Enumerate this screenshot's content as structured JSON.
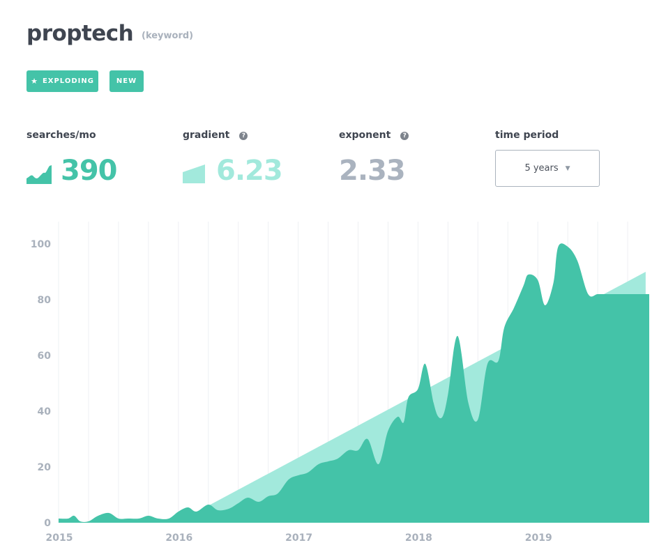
{
  "keyword": {
    "title": "proptech",
    "kind": "(keyword)"
  },
  "badges": {
    "exploding": {
      "icon": "star-icon",
      "label": "EXPLODING"
    },
    "new": {
      "label": "NEW"
    }
  },
  "metrics": {
    "searches": {
      "label": "searches/mo",
      "value": "390",
      "icon": "area-growth-icon",
      "color": "#44c3a8"
    },
    "gradient": {
      "label": "gradient",
      "value": "6.23",
      "icon": "trapezoid-icon",
      "color": "#a2e9dc"
    },
    "exponent": {
      "label": "exponent",
      "value": "2.33",
      "color": "#aab3bf"
    }
  },
  "time_period": {
    "label": "time period",
    "value": "5 years",
    "icon": "caret-down-icon"
  },
  "colors": {
    "accent": "#44c3a8",
    "trend": "#a2e9dc",
    "axis_text": "#a9b1bc",
    "grid": "#eef0f3"
  },
  "chart_data": {
    "type": "area",
    "title": "",
    "xlabel": "",
    "ylabel": "",
    "ylim": [
      0,
      100
    ],
    "yticks": [
      0,
      20,
      40,
      60,
      80,
      100
    ],
    "xlim": [
      2015.0,
      2019.93
    ],
    "xticks": [
      {
        "label": "2015",
        "x": 2015.0
      },
      {
        "label": "2016",
        "x": 2016.0
      },
      {
        "label": "2017",
        "x": 2017.0
      },
      {
        "label": "2018",
        "x": 2018.0
      },
      {
        "label": "2019",
        "x": 2019.0
      }
    ],
    "grid": true,
    "series": [
      {
        "name": "searches",
        "color": "#44c3a8",
        "x": [
          2015.0,
          2015.08,
          2015.13,
          2015.18,
          2015.25,
          2015.33,
          2015.42,
          2015.5,
          2015.58,
          2015.67,
          2015.75,
          2015.83,
          2015.92,
          2016.0,
          2016.08,
          2016.15,
          2016.25,
          2016.33,
          2016.42,
          2016.5,
          2016.58,
          2016.67,
          2016.75,
          2016.83,
          2016.92,
          2017.0,
          2017.08,
          2017.17,
          2017.25,
          2017.33,
          2017.42,
          2017.5,
          2017.58,
          2017.67,
          2017.75,
          2017.83,
          2017.88,
          2017.92,
          2018.0,
          2018.06,
          2018.13,
          2018.17,
          2018.21,
          2018.25,
          2018.33,
          2018.42,
          2018.5,
          2018.58,
          2018.67,
          2018.72,
          2018.8,
          2018.88,
          2018.92,
          2019.0,
          2019.06,
          2019.13,
          2019.17,
          2019.25,
          2019.33,
          2019.42,
          2019.5,
          2019.58,
          2019.63,
          2019.7,
          2019.75,
          2019.83,
          2019.93
        ],
        "values": [
          1.5,
          1.5,
          2.5,
          0.5,
          0.5,
          2.5,
          3.5,
          1.5,
          1.5,
          1.5,
          2.5,
          1.5,
          1.5,
          4.0,
          5.5,
          4.0,
          6.5,
          4.5,
          5.0,
          7.0,
          9.0,
          7.5,
          9.5,
          10.5,
          15.5,
          17.0,
          18.0,
          21.0,
          22.0,
          23.0,
          26.0,
          26.0,
          30.0,
          21.0,
          33.0,
          38.0,
          36.0,
          45.0,
          48.0,
          57.0,
          43.0,
          38.0,
          38.5,
          46.0,
          67.0,
          43.0,
          37.0,
          57.0,
          58.0,
          70.0,
          77.0,
          85.0,
          89.0,
          87.0,
          78.0,
          86.0,
          99.0,
          99.0,
          94.0,
          82.0,
          82.0,
          82.0,
          82.0,
          82.0,
          82.0,
          82.0,
          82.0
        ]
      },
      {
        "name": "trend",
        "color": "#a2e9dc",
        "x": [
          2016.05,
          2019.9
        ],
        "values": [
          1.5,
          90.0
        ]
      }
    ]
  }
}
